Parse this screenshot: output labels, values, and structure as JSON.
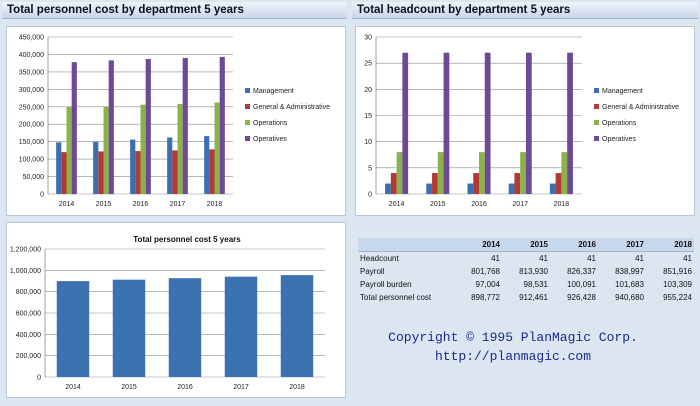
{
  "headers": {
    "left": "Total personnel cost by department 5 years",
    "right": "Total headcount by department 5 years"
  },
  "chart_data": [
    {
      "type": "bar",
      "categories": [
        "2014",
        "2015",
        "2016",
        "2017",
        "2018"
      ],
      "series": [
        {
          "name": "Management",
          "color": "#3c6fb0",
          "values": [
            148000,
            150000,
            156000,
            162000,
            166000
          ]
        },
        {
          "name": "General & Administrative",
          "color": "#b23a36",
          "values": [
            120000,
            122000,
            123000,
            125000,
            128000
          ]
        },
        {
          "name": "Operations",
          "color": "#8cb04a",
          "values": [
            250000,
            250000,
            256000,
            258000,
            262000
          ]
        },
        {
          "name": "Operatives",
          "color": "#6d4a96",
          "values": [
            378000,
            383000,
            387000,
            390000,
            393000
          ]
        }
      ],
      "ylim": [
        0,
        450000
      ],
      "yticks": [
        "0",
        "50,000",
        "100,000",
        "150,000",
        "200,000",
        "250,000",
        "300,000",
        "350,000",
        "400,000",
        "450,000"
      ],
      "legend": "right"
    },
    {
      "type": "bar",
      "categories": [
        "2014",
        "2015",
        "2016",
        "2017",
        "2018"
      ],
      "series": [
        {
          "name": "Management",
          "color": "#3c6fb0",
          "values": [
            2,
            2,
            2,
            2,
            2
          ]
        },
        {
          "name": "General & Administrative",
          "color": "#b23a36",
          "values": [
            4,
            4,
            4,
            4,
            4
          ]
        },
        {
          "name": "Operations",
          "color": "#8cb04a",
          "values": [
            8,
            8,
            8,
            8,
            8
          ]
        },
        {
          "name": "Operatives",
          "color": "#6d4a96",
          "values": [
            27,
            27,
            27,
            27,
            27
          ]
        }
      ],
      "ylim": [
        0,
        30
      ],
      "yticks": [
        "0",
        "5",
        "10",
        "15",
        "20",
        "25",
        "30"
      ],
      "legend": "right"
    },
    {
      "type": "bar",
      "title": "Total personnel cost 5 years",
      "categories": [
        "2014",
        "2015",
        "2016",
        "2017",
        "2018"
      ],
      "series": [
        {
          "color": "#3c72b0",
          "values": [
            898772,
            912461,
            926428,
            940680,
            955224
          ]
        }
      ],
      "ylim": [
        0,
        1200000
      ],
      "yticks": [
        "0",
        "200,000",
        "400,000",
        "600,000",
        "800,000",
        "1,000,000",
        "1,200,000"
      ]
    }
  ],
  "table": {
    "columns": [
      "",
      "2014",
      "2015",
      "2016",
      "2017",
      "2018"
    ],
    "rows": [
      [
        "Headcount",
        "41",
        "41",
        "41",
        "41",
        "41"
      ],
      [
        "Payroll",
        "801,768",
        "813,930",
        "826,337",
        "838,997",
        "851,916"
      ],
      [
        "Payroll burden",
        "97,004",
        "98,531",
        "100,091",
        "101,683",
        "103,309"
      ],
      [
        "Total personnel cost",
        "898,772",
        "912,461",
        "926,428",
        "940,680",
        "955,224"
      ]
    ]
  },
  "copyright": {
    "line1": "Copyright © 1995 PlanMagic Corp.",
    "line2": "http://planmagic.com"
  }
}
